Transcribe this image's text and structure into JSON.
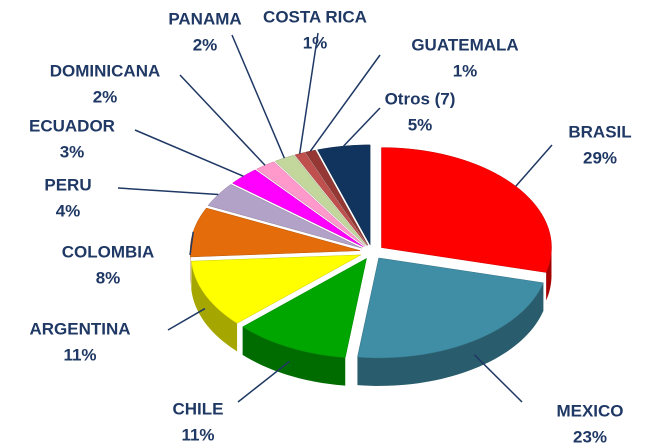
{
  "chart_data": {
    "type": "pie",
    "categories": [
      "BRASIL",
      "MEXICO",
      "CHILE",
      "ARGENTINA",
      "COLOMBIA",
      "PERU",
      "ECUADOR",
      "DOMINICANA",
      "PANAMA",
      "COSTA RICA",
      "GUATEMALA",
      "Otros (7)"
    ],
    "values": [
      29,
      23,
      11,
      11,
      8,
      4,
      3,
      2,
      2,
      1,
      1,
      5
    ],
    "value_labels": [
      "29%",
      "23%",
      "11%",
      "11%",
      "8%",
      "4%",
      "3%",
      "2%",
      "2%",
      "1%",
      "1%",
      "5%"
    ],
    "colors": [
      "#ff0000",
      "#3f8ea6",
      "#00a600",
      "#ffff00",
      "#e46c0a",
      "#b3a2c7",
      "#ff00ff",
      "#ff99cc",
      "#c3d69b",
      "#c0504d",
      "#953735",
      "#10345e"
    ]
  }
}
